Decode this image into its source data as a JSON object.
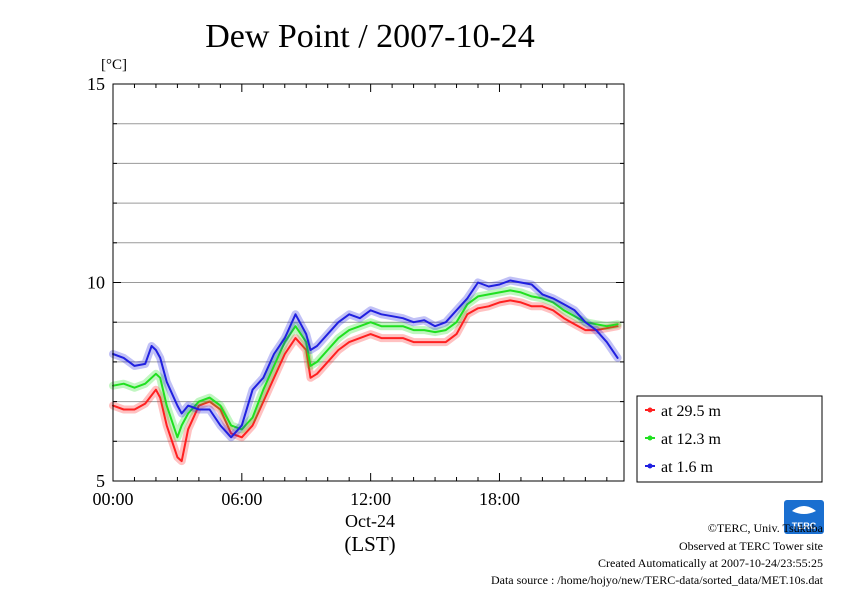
{
  "chart_data": {
    "type": "line",
    "title": "Dew Point / 2007-10-24",
    "ylabel": "[°C]",
    "x_date_label": "Oct-24",
    "x_timezone_label": "(LST)",
    "xlim": [
      0,
      23.8
    ],
    "ylim": [
      5,
      15
    ],
    "x_ticks": [
      0,
      6,
      12,
      18
    ],
    "x_tick_labels": [
      "00:00",
      "06:00",
      "12:00",
      "18:00"
    ],
    "y_ticks": [
      5,
      10,
      15
    ],
    "y_tick_labels": [
      "5",
      "10",
      "15"
    ],
    "y_gridlines": [
      6,
      7,
      8,
      9,
      11,
      12,
      13,
      14
    ],
    "grid": true,
    "legend_position": "right",
    "x_unit": "hour of day (LST)",
    "series": [
      {
        "name": "at 29.5 m",
        "color": "#ff2020",
        "x": [
          0,
          0.5,
          1,
          1.5,
          2,
          2.2,
          2.5,
          3,
          3.2,
          3.5,
          4,
          4.5,
          5,
          5.5,
          6,
          6.5,
          7,
          7.5,
          8,
          8.5,
          9,
          9.2,
          9.5,
          10,
          10.5,
          11,
          11.5,
          12,
          12.5,
          13,
          13.5,
          14,
          14.5,
          15,
          15.5,
          16,
          16.5,
          17,
          17.5,
          18,
          18.5,
          19,
          19.5,
          20,
          20.5,
          21,
          21.5,
          22,
          22.5,
          23,
          23.5
        ],
        "values": [
          6.9,
          6.8,
          6.8,
          6.95,
          7.3,
          7.1,
          6.4,
          5.6,
          5.5,
          6.3,
          6.9,
          7.0,
          6.8,
          6.2,
          6.1,
          6.4,
          7.0,
          7.6,
          8.2,
          8.6,
          8.3,
          7.6,
          7.7,
          8.0,
          8.3,
          8.5,
          8.6,
          8.7,
          8.6,
          8.6,
          8.6,
          8.5,
          8.5,
          8.5,
          8.5,
          8.7,
          9.2,
          9.35,
          9.4,
          9.5,
          9.55,
          9.5,
          9.4,
          9.4,
          9.3,
          9.1,
          8.95,
          8.8,
          8.8,
          8.85,
          8.9
        ]
      },
      {
        "name": "at 12.3 m",
        "color": "#20e020",
        "x": [
          0,
          0.5,
          1,
          1.5,
          2,
          2.2,
          2.5,
          3,
          3.2,
          3.5,
          4,
          4.5,
          5,
          5.5,
          6,
          6.5,
          7,
          7.5,
          8,
          8.5,
          9,
          9.2,
          9.5,
          10,
          10.5,
          11,
          11.5,
          12,
          12.5,
          13,
          13.5,
          14,
          14.5,
          15,
          15.5,
          16,
          16.5,
          17,
          17.5,
          18,
          18.5,
          19,
          19.5,
          20,
          20.5,
          21,
          21.5,
          22,
          22.5,
          23,
          23.5
        ],
        "values": [
          7.4,
          7.45,
          7.35,
          7.45,
          7.7,
          7.6,
          6.9,
          6.1,
          6.4,
          6.7,
          7.0,
          7.1,
          6.9,
          6.4,
          6.3,
          6.6,
          7.3,
          7.9,
          8.5,
          8.9,
          8.5,
          7.9,
          8.0,
          8.3,
          8.6,
          8.8,
          8.9,
          9.0,
          8.9,
          8.9,
          8.9,
          8.8,
          8.8,
          8.75,
          8.8,
          9.0,
          9.45,
          9.65,
          9.7,
          9.75,
          9.8,
          9.75,
          9.65,
          9.6,
          9.5,
          9.3,
          9.15,
          9.0,
          8.95,
          8.9,
          8.95
        ]
      },
      {
        "name": "at 1.6 m",
        "color": "#2020e0",
        "x": [
          0,
          0.5,
          1,
          1.5,
          1.8,
          2,
          2.2,
          2.5,
          3,
          3.2,
          3.5,
          4,
          4.5,
          5,
          5.5,
          6,
          6.5,
          7,
          7.5,
          8,
          8.5,
          9,
          9.2,
          9.5,
          10,
          10.5,
          11,
          11.5,
          12,
          12.5,
          13,
          13.5,
          14,
          14.5,
          15,
          15.5,
          16,
          16.5,
          17,
          17.5,
          18,
          18.5,
          19,
          19.5,
          20,
          20.5,
          21,
          21.5,
          22,
          22.5,
          23,
          23.5
        ],
        "values": [
          8.2,
          8.1,
          7.9,
          7.95,
          8.4,
          8.3,
          8.1,
          7.5,
          6.9,
          6.7,
          6.9,
          6.8,
          6.8,
          6.4,
          6.1,
          6.4,
          7.3,
          7.6,
          8.2,
          8.6,
          9.2,
          8.7,
          8.3,
          8.4,
          8.7,
          9.0,
          9.2,
          9.1,
          9.3,
          9.2,
          9.15,
          9.1,
          9.0,
          9.05,
          8.9,
          9.0,
          9.3,
          9.6,
          10.0,
          9.9,
          9.95,
          10.05,
          10.0,
          9.95,
          9.7,
          9.6,
          9.45,
          9.3,
          9.0,
          8.8,
          8.5,
          8.1
        ]
      }
    ]
  },
  "credits": {
    "copyright": "©TERC, Univ. Tsukuba",
    "observed": "Observed at TERC Tower site",
    "created": "Created Automatically at 2007-10-24/23:55:25",
    "source": "Data source : /home/hojyo/new/TERC-data/sorted_data/MET.10s.dat"
  },
  "logo": {
    "text": "TERC",
    "color": "#1a6fd0"
  }
}
